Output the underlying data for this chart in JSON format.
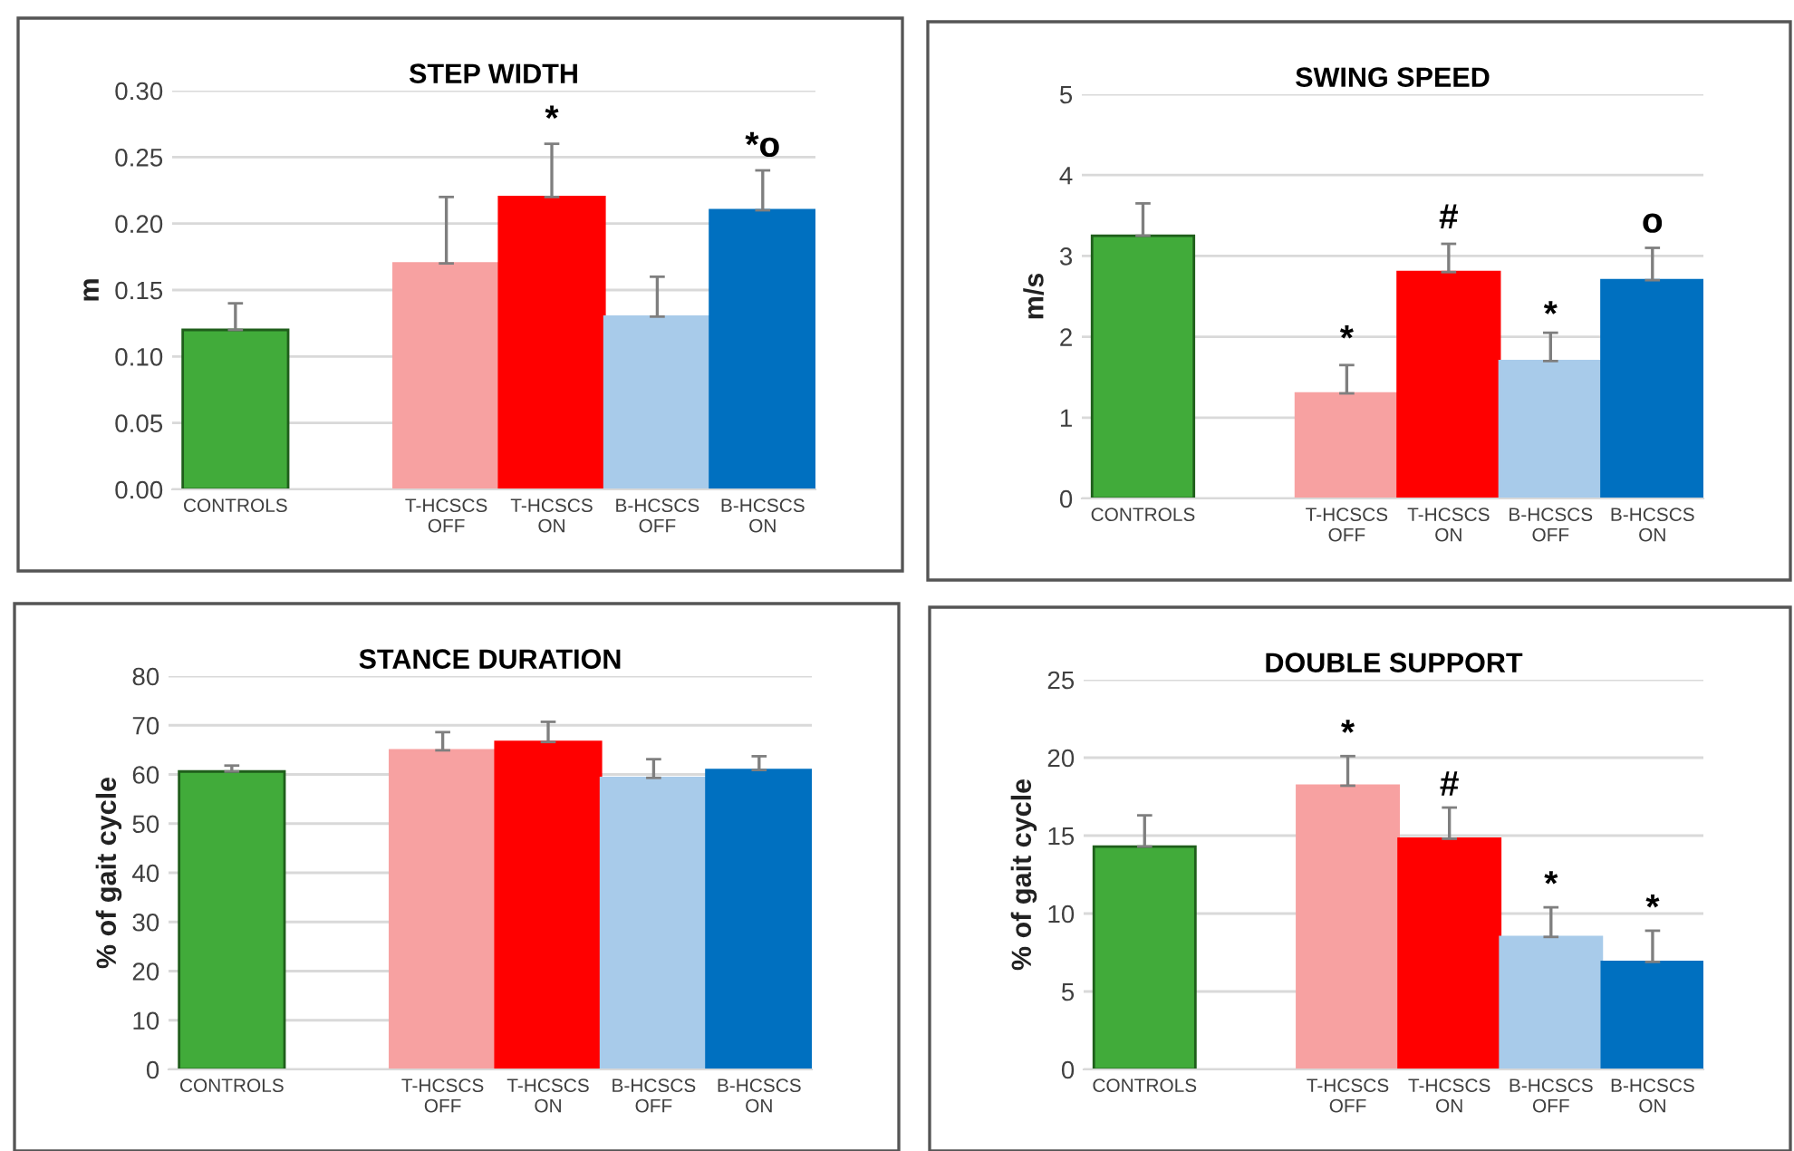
{
  "chart_data": [
    {
      "type": "bar",
      "title": "STEP WIDTH",
      "ylabel": "m",
      "categories": [
        "CONTROLS",
        null,
        "T-HCSCS\nOFF",
        "T-HCSCS\nON",
        "B-HCSCS\nOFF",
        "B-HCSCS\nON"
      ],
      "values": [
        0.12,
        null,
        0.17,
        0.22,
        0.13,
        0.21
      ],
      "errors": [
        [
          0.12,
          0.14
        ],
        null,
        [
          0.17,
          0.22
        ],
        [
          0.22,
          0.26
        ],
        [
          0.13,
          0.16
        ],
        [
          0.21,
          0.24
        ]
      ],
      "colors": [
        "#41ab3a",
        "#ffffff",
        "#f7a1a1",
        "#ff0000",
        "#a8cbea",
        "#0070c0"
      ],
      "ylim": [
        0,
        0.3
      ],
      "yticks": [
        {
          "value": 0,
          "label": "0.00"
        },
        {
          "value": 0.05,
          "label": "0.05"
        },
        {
          "value": 0.1,
          "label": "0.10"
        },
        {
          "value": 0.15,
          "label": "0.15"
        },
        {
          "value": 0.2,
          "label": "0.20"
        },
        {
          "value": 0.25,
          "label": "0.25"
        },
        {
          "value": 0.3,
          "label": "0.30"
        }
      ],
      "grid": "y",
      "annotations": [
        {
          "text": "*",
          "x": "T-HCSCS\nON",
          "y": 0.265
        },
        {
          "text": "*o",
          "x": "B-HCSCS\nON",
          "y": 0.245
        }
      ]
    },
    {
      "type": "bar",
      "title": "SWING SPEED",
      "ylabel": "m/s",
      "categories": [
        "CONTROLS",
        null,
        "T-HCSCS\nOFF",
        "T-HCSCS\nON",
        "B-HCSCS\nOFF",
        "B-HCSCS\nON"
      ],
      "values": [
        3.25,
        null,
        1.3,
        2.8,
        1.7,
        2.7
      ],
      "errors": [
        [
          3.25,
          3.65
        ],
        null,
        [
          1.3,
          1.65
        ],
        [
          2.8,
          3.15
        ],
        [
          1.7,
          2.05
        ],
        [
          2.7,
          3.1
        ]
      ],
      "colors": [
        "#41ab3a",
        "#ffffff",
        "#f7a1a1",
        "#ff0000",
        "#a8cbea",
        "#0070c0"
      ],
      "ylim": [
        0,
        5
      ],
      "yticks": [
        0,
        1,
        2,
        3,
        4,
        5
      ],
      "grid": "y",
      "annotations": [
        {
          "text": "*",
          "x": "T-HCSCS\nOFF",
          "y": 1.75
        },
        {
          "text": "#",
          "x": "T-HCSCS\nON",
          "y": 3.25
        },
        {
          "text": "*",
          "x": "B-HCSCS\nOFF",
          "y": 2.05
        },
        {
          "text": "o",
          "x": "B-HCSCS\nON",
          "y": 3.2
        }
      ]
    },
    {
      "type": "bar",
      "title": "STANCE DURATION",
      "ylabel": "% of gait cycle",
      "categories": [
        "CONTROLS",
        null,
        "T-HCSCS\nOFF",
        "T-HCSCS\nON",
        "B-HCSCS\nOFF",
        "B-HCSCS\nON"
      ],
      "values": [
        60.6,
        null,
        64.9,
        66.6,
        59.3,
        60.9
      ],
      "errors": [
        [
          60.6,
          61.8
        ],
        null,
        [
          64.9,
          68.6
        ],
        [
          66.6,
          70.7
        ],
        [
          59.3,
          63.1
        ],
        [
          60.9,
          63.7
        ]
      ],
      "colors": [
        "#41ab3a",
        "#ffffff",
        "#f7a1a1",
        "#ff0000",
        "#a8cbea",
        "#0070c0"
      ],
      "ylim": [
        0,
        80
      ],
      "yticks": [
        0,
        10,
        20,
        30,
        40,
        50,
        60,
        70,
        80
      ],
      "grid": "y"
    },
    {
      "type": "bar",
      "title": "DOUBLE SUPPORT",
      "ylabel": "% of gait cycle",
      "categories": [
        "CONTROLS",
        null,
        "T-HCSCS\nOFF",
        "T-HCSCS\nON",
        "B-HCSCS\nOFF",
        "B-HCSCS\nON"
      ],
      "values": [
        14.3,
        null,
        18.2,
        14.8,
        8.5,
        6.9
      ],
      "errors": [
        [
          14.3,
          16.3
        ],
        null,
        [
          18.2,
          20.1
        ],
        [
          14.8,
          16.8
        ],
        [
          8.5,
          10.4
        ],
        [
          6.9,
          8.9
        ]
      ],
      "colors": [
        "#41ab3a",
        "#ffffff",
        "#f7a1a1",
        "#ff0000",
        "#a8cbea",
        "#0070c0"
      ],
      "ylim": [
        0,
        25
      ],
      "yticks": [
        0,
        5,
        10,
        15,
        20,
        25
      ],
      "grid": "y",
      "annotations": [
        {
          "text": "*",
          "x": "T-HCSCS\nOFF",
          "y": 20.4
        },
        {
          "text": "#",
          "x": "T-HCSCS\nON",
          "y": 17.1
        },
        {
          "text": "*",
          "x": "B-HCSCS\nOFF",
          "y": 10.7
        },
        {
          "text": "*",
          "x": "B-HCSCS\nON",
          "y": 9.2
        }
      ]
    }
  ]
}
